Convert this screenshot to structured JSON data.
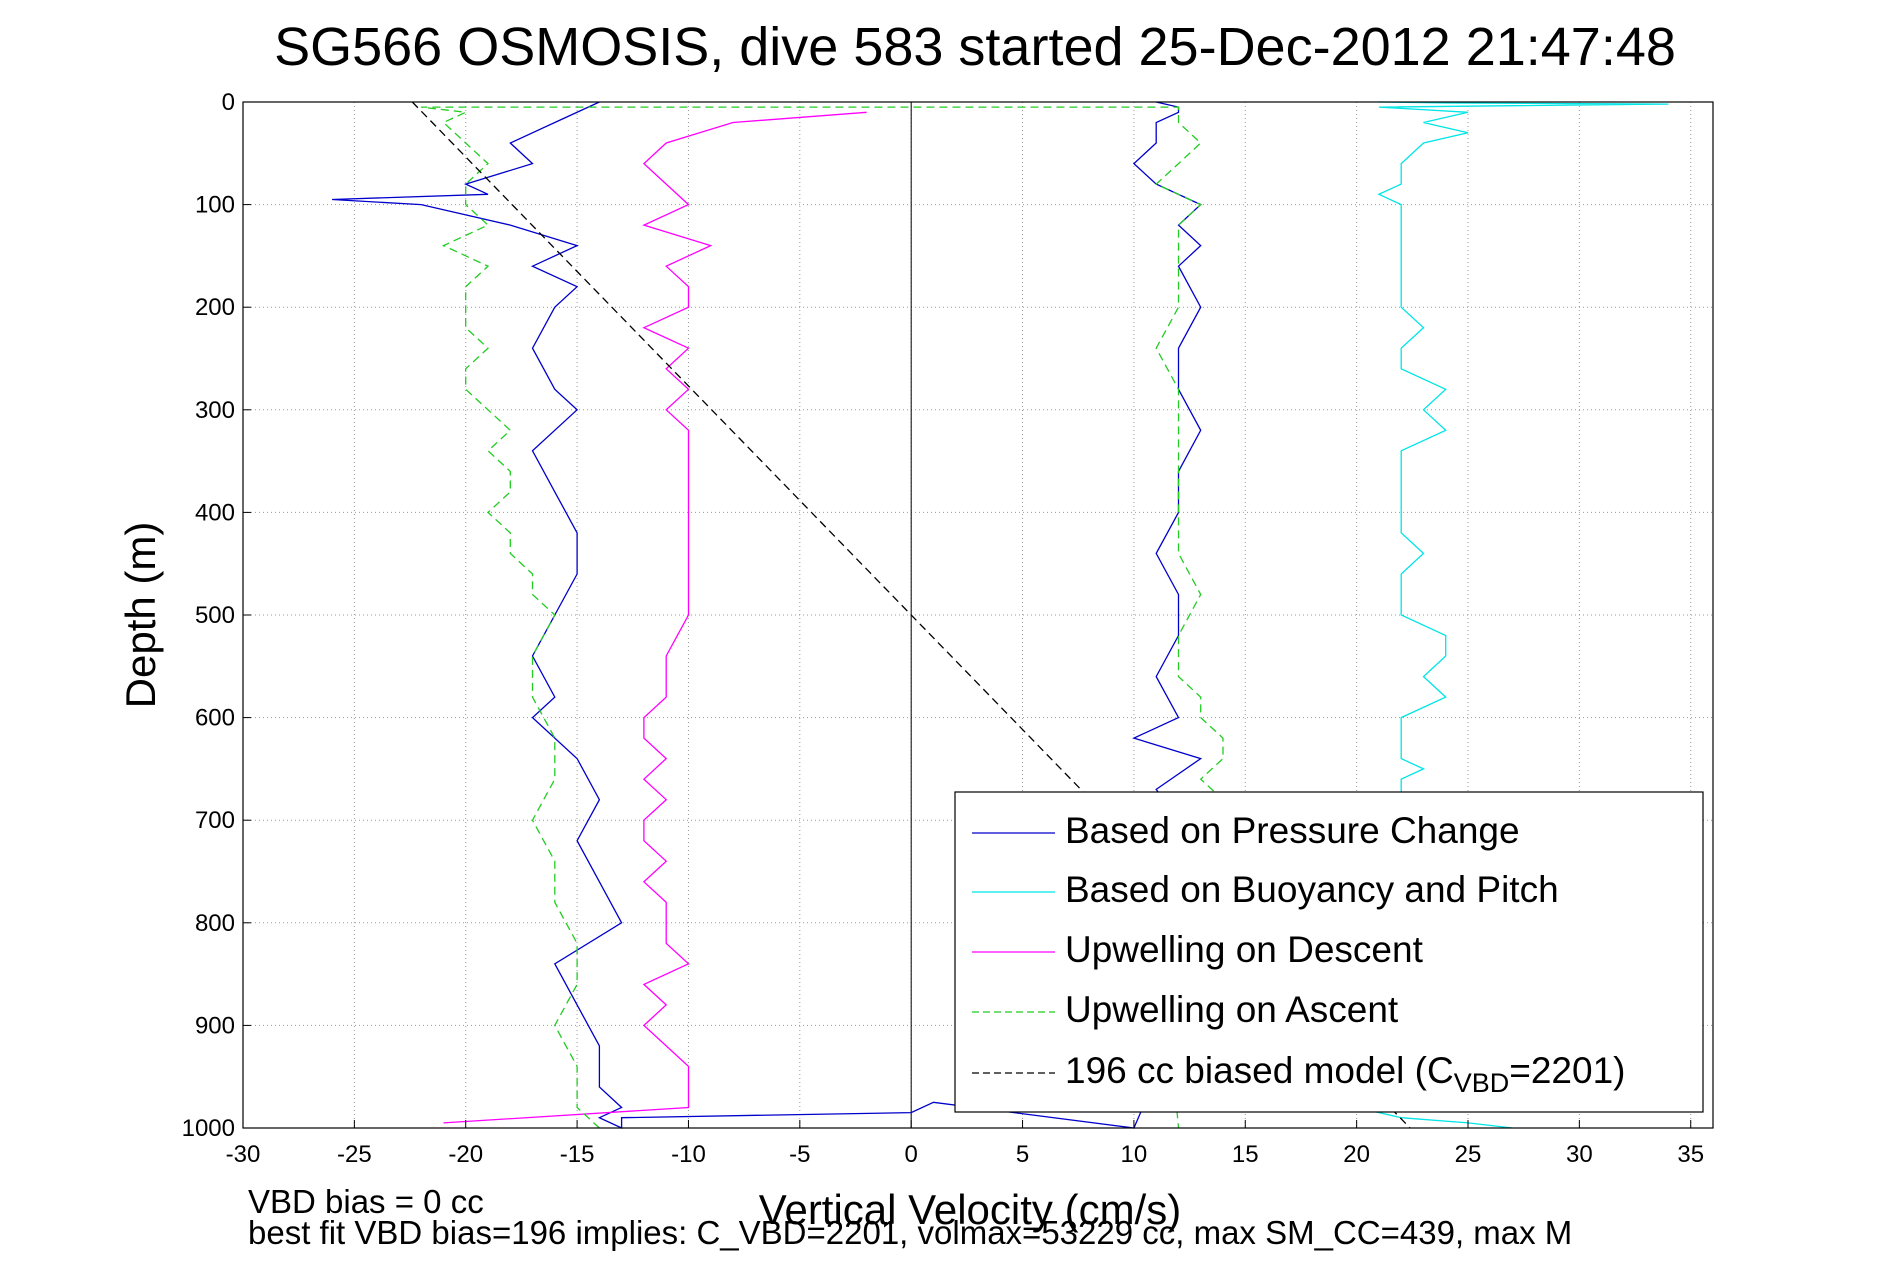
{
  "chart_data": {
    "type": "line",
    "title": "SG566 OSMOSIS, dive 583 started 25-Dec-2012 21:47:48",
    "xlabel": "Vertical Velocity (cm/s)",
    "ylabel": "Depth (m)",
    "xlim": [
      -30,
      36
    ],
    "ylim": [
      0,
      1000
    ],
    "y_reversed": true,
    "grid": true,
    "xticks": [
      -30,
      -25,
      -20,
      -15,
      -10,
      -5,
      0,
      5,
      10,
      15,
      20,
      25,
      30,
      35
    ],
    "yticks": [
      0,
      100,
      200,
      300,
      400,
      500,
      600,
      700,
      800,
      900,
      1000
    ],
    "legend_position": "bottom-right",
    "series": [
      {
        "name": "Based on Pressure Change",
        "color": "#0000cc",
        "style": "solid",
        "x": [
          -14,
          -16,
          -18,
          -17,
          -20,
          -19,
          -26,
          -22,
          -18,
          -15,
          -17,
          -15,
          -16,
          -17,
          -16,
          -15,
          -17,
          -16,
          -15,
          -15,
          -16,
          -17,
          -16,
          -17,
          -15,
          -14,
          -15,
          -14,
          -13,
          -16,
          -15,
          -14,
          -14,
          -13,
          -14,
          -13,
          -13,
          0,
          1,
          10,
          12,
          13,
          12,
          11,
          13,
          10,
          12,
          11,
          12,
          12,
          11,
          12,
          12,
          13,
          12,
          12,
          13,
          12,
          13,
          12,
          13,
          11,
          10,
          11,
          11,
          12,
          12,
          11
        ],
        "y": [
          0,
          20,
          40,
          60,
          80,
          90,
          95,
          100,
          120,
          140,
          160,
          180,
          200,
          240,
          280,
          300,
          340,
          380,
          420,
          460,
          500,
          540,
          580,
          600,
          640,
          680,
          720,
          760,
          800,
          840,
          880,
          920,
          960,
          980,
          990,
          1000,
          990,
          985,
          975,
          1000,
          900,
          800,
          700,
          670,
          640,
          620,
          600,
          560,
          520,
          480,
          440,
          400,
          360,
          320,
          280,
          240,
          200,
          160,
          140,
          120,
          100,
          80,
          60,
          40,
          20,
          10,
          5,
          0
        ]
      },
      {
        "name": "Based on Buoyancy and Pitch",
        "color": "#00e5e5",
        "style": "solid",
        "x": [
          27,
          25,
          22,
          20,
          22,
          21,
          22,
          22,
          22,
          22,
          23,
          22,
          23,
          23,
          22,
          23,
          23,
          22,
          22,
          22,
          23,
          22,
          22,
          22,
          24,
          23,
          24,
          24,
          22,
          22,
          22,
          23,
          22,
          22,
          22,
          22,
          22,
          22,
          24,
          23,
          24,
          22,
          22,
          23,
          22,
          22,
          22,
          22,
          22,
          22,
          22,
          21,
          22,
          22,
          23,
          25,
          23,
          25,
          21,
          34,
          24,
          21
        ],
        "y": [
          1000,
          995,
          990,
          980,
          960,
          940,
          920,
          900,
          880,
          860,
          840,
          820,
          800,
          780,
          760,
          740,
          720,
          700,
          680,
          660,
          650,
          640,
          620,
          600,
          580,
          560,
          540,
          520,
          500,
          480,
          460,
          440,
          420,
          410,
          400,
          380,
          360,
          340,
          320,
          300,
          280,
          260,
          240,
          220,
          200,
          180,
          160,
          150,
          140,
          120,
          100,
          90,
          80,
          60,
          40,
          30,
          20,
          10,
          5,
          2,
          1,
          0
        ]
      },
      {
        "name": "Upwelling on Descent",
        "color": "#ff00ff",
        "style": "solid",
        "x": [
          -2,
          -8,
          -11,
          -12,
          -11,
          -10,
          -12,
          -9,
          -11,
          -10,
          -10,
          -12,
          -10,
          -11,
          -10,
          -11,
          -10,
          -10,
          -10,
          -10,
          -10,
          -10,
          -11,
          -11,
          -12,
          -12,
          -11,
          -12,
          -11,
          -12,
          -12,
          -11,
          -12,
          -11,
          -11,
          -11,
          -10,
          -12,
          -11,
          -12,
          -11,
          -10,
          -10,
          -21
        ],
        "y": [
          10,
          20,
          40,
          60,
          80,
          100,
          120,
          140,
          160,
          180,
          200,
          220,
          240,
          260,
          280,
          300,
          320,
          340,
          380,
          420,
          460,
          500,
          540,
          580,
          600,
          620,
          640,
          660,
          680,
          700,
          720,
          740,
          760,
          780,
          800,
          820,
          840,
          860,
          880,
          900,
          920,
          940,
          980,
          995
        ]
      },
      {
        "name": "Upwelling on Ascent",
        "color": "#22cc22",
        "style": "dashed",
        "x": [
          -14,
          -15,
          -15,
          -16,
          -15,
          -15,
          -16,
          -16,
          -17,
          -16,
          -16,
          -17,
          -17,
          -16,
          -17,
          -17,
          -18,
          -18,
          -19,
          -18,
          -18,
          -19,
          -18,
          -19,
          -20,
          -20,
          -19,
          -20,
          -20,
          -20,
          -19,
          -21,
          -19,
          -20,
          -20,
          -19,
          -20,
          -21,
          -20,
          -22,
          12,
          12,
          13,
          12,
          11,
          13,
          12,
          12,
          12,
          11,
          12,
          12,
          12,
          12,
          12,
          13,
          12,
          12,
          13,
          13,
          14,
          14,
          13,
          14,
          12,
          13,
          11,
          12
        ],
        "y": [
          1000,
          980,
          940,
          900,
          860,
          820,
          780,
          740,
          700,
          660,
          620,
          580,
          540,
          500,
          480,
          460,
          440,
          420,
          400,
          380,
          360,
          340,
          320,
          300,
          280,
          260,
          240,
          220,
          200,
          180,
          160,
          140,
          120,
          100,
          80,
          60,
          40,
          20,
          10,
          5,
          5,
          20,
          40,
          60,
          80,
          100,
          120,
          160,
          200,
          240,
          280,
          320,
          360,
          400,
          440,
          480,
          520,
          560,
          580,
          600,
          620,
          640,
          660,
          680,
          700,
          720,
          760,
          1000
        ]
      },
      {
        "name": "196 cc biased model (C_VBD=2201)",
        "color": "#000000",
        "style": "dashed",
        "x": [
          -22.4,
          22.4
        ],
        "y": [
          0,
          1000
        ]
      }
    ]
  },
  "legend": {
    "items": [
      {
        "label": "Based on Pressure Change",
        "color": "#0000cc",
        "dash": ""
      },
      {
        "label": "Based on Buoyancy and Pitch",
        "color": "#00e5e5",
        "dash": ""
      },
      {
        "label": "Upwelling on Descent",
        "color": "#ff00ff",
        "dash": ""
      },
      {
        "label": "Upwelling on Ascent",
        "color": "#22cc22",
        "dash": "7,4"
      }
    ],
    "model_prefix": "196 cc biased model (C",
    "model_sub": "VBD",
    "model_suffix": "=2201)"
  },
  "notes": {
    "line1": "VBD bias = 0 cc",
    "line2": "best fit VBD bias=196 implies: C_VBD=2201, volmax=53229 cc, max SM_CC=439, max M"
  }
}
